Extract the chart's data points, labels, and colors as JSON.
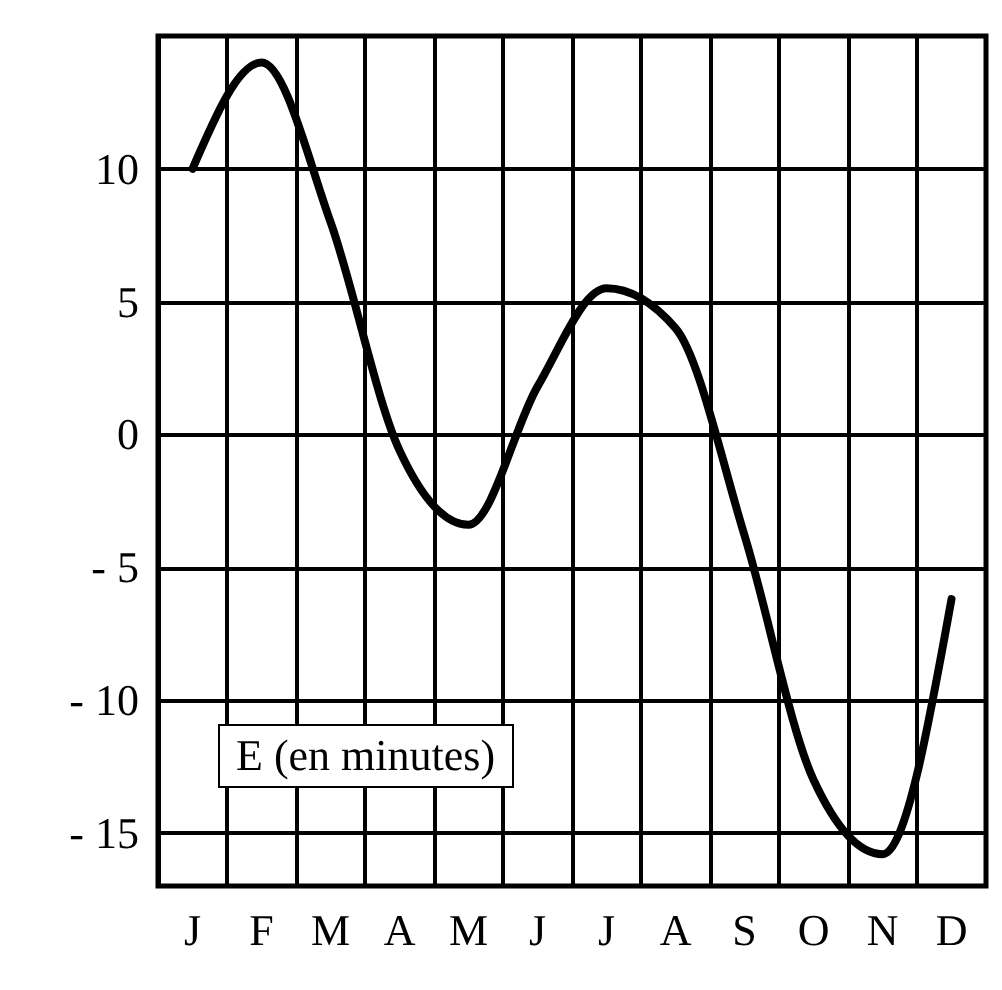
{
  "chart_data": {
    "type": "line",
    "annotations": [
      "E (en minutes)"
    ],
    "categories": [
      "J",
      "F",
      "M",
      "A",
      "M",
      "J",
      "J",
      "A",
      "S",
      "O",
      "N",
      "D"
    ],
    "series": [
      {
        "color": "#000000",
        "values": [
          10,
          14,
          8,
          -0.6,
          -3.4,
          1.8,
          5.5,
          4,
          -3.8,
          -13,
          -15.8,
          -6.2
        ]
      }
    ],
    "ylim": [
      -17,
      15
    ],
    "yticks": [
      {
        "value": -15,
        "label": "- 15"
      },
      {
        "value": -10,
        "label": "- 10"
      },
      {
        "value": -5,
        "label": "- 5"
      },
      0,
      5,
      10
    ],
    "grid": true,
    "marker": "none",
    "line_style": "solid"
  }
}
